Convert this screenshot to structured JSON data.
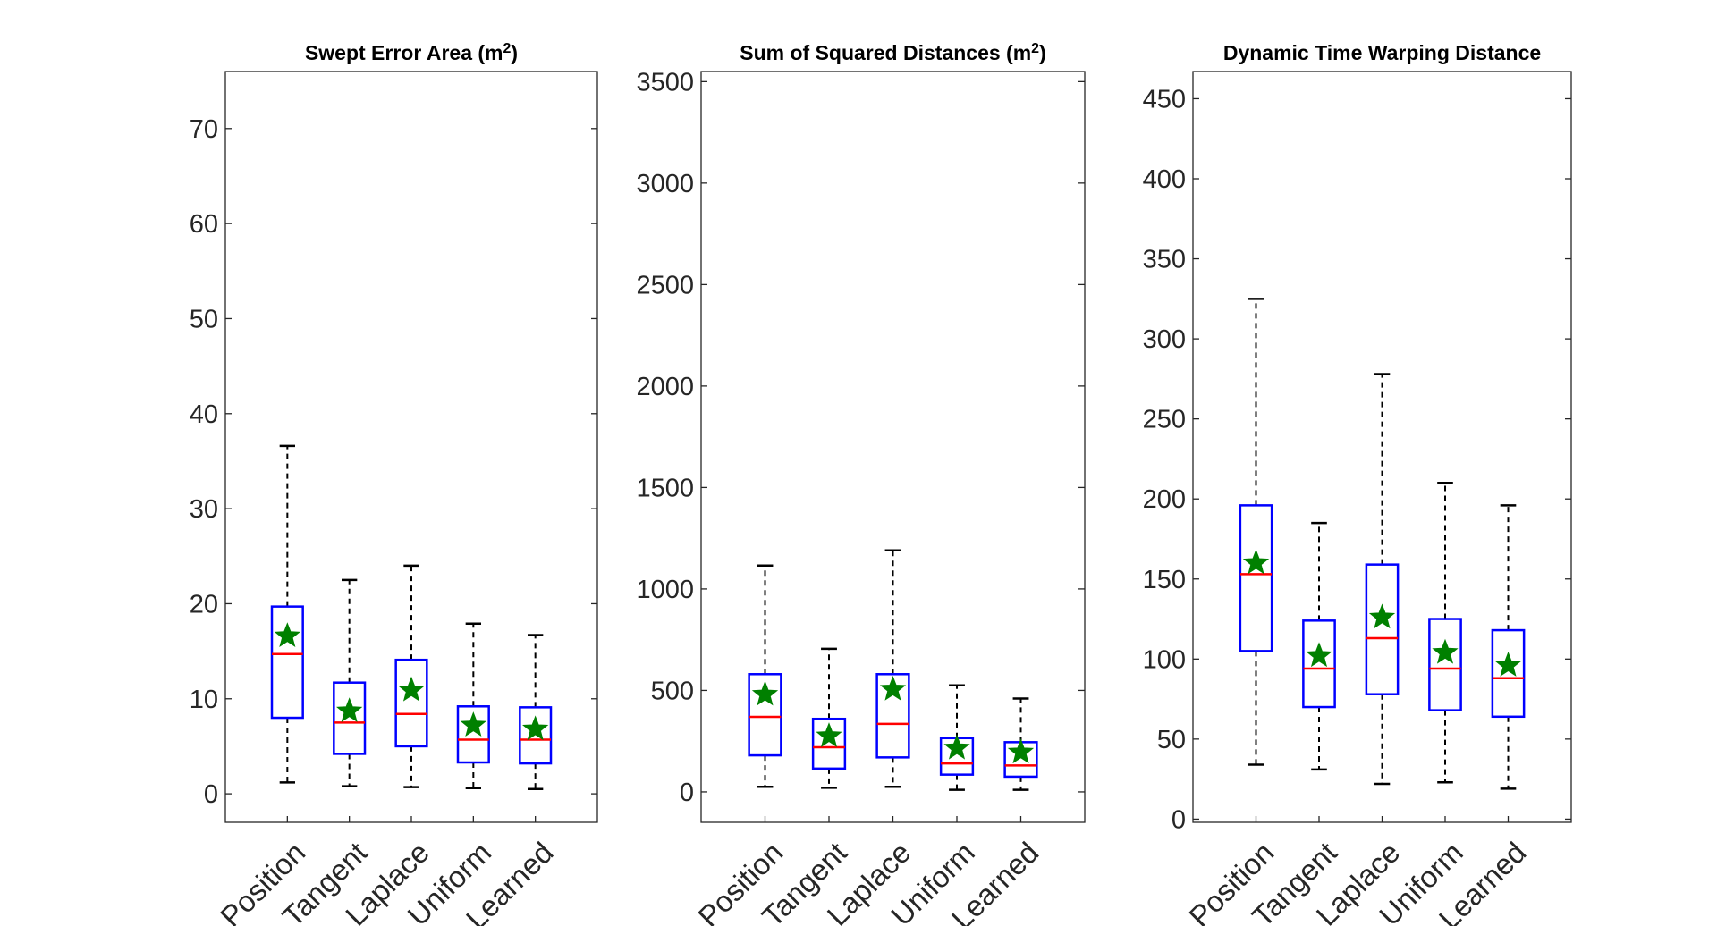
{
  "colors": {
    "box": "#0000ff",
    "median": "#ff0000",
    "mean_marker": "#008000",
    "whisker": "#000000",
    "axes": "#262626"
  },
  "chart_data": [
    {
      "type": "box",
      "title": "Swept Error Area (m",
      "title_sup": "2",
      "title_end": ")",
      "categories": [
        "Position",
        "Tangent",
        "Laplace",
        "Uniform",
        "Learned"
      ],
      "ylim": [
        -3,
        76
      ],
      "yticks": [
        0,
        10,
        20,
        30,
        40,
        50,
        60,
        70
      ],
      "boxes": [
        {
          "min": 1.2,
          "q1": 8.0,
          "median": 14.7,
          "q3": 19.7,
          "max": 36.6,
          "mean": 16.6
        },
        {
          "min": 0.8,
          "q1": 4.2,
          "median": 7.5,
          "q3": 11.7,
          "max": 22.5,
          "mean": 8.7
        },
        {
          "min": 0.7,
          "q1": 5.0,
          "median": 8.4,
          "q3": 14.1,
          "max": 24.0,
          "mean": 10.9
        },
        {
          "min": 0.6,
          "q1": 3.3,
          "median": 5.7,
          "q3": 9.2,
          "max": 17.9,
          "mean": 7.2
        },
        {
          "min": 0.5,
          "q1": 3.2,
          "median": 5.7,
          "q3": 9.1,
          "max": 16.7,
          "mean": 6.8
        }
      ]
    },
    {
      "type": "box",
      "title": "Sum of Squared Distances (m",
      "title_sup": "2",
      "title_end": ")",
      "categories": [
        "Position",
        "Tangent",
        "Laplace",
        "Uniform",
        "Learned"
      ],
      "ylim": [
        -150,
        3550
      ],
      "yticks": [
        0,
        500,
        1000,
        1500,
        2000,
        2500,
        3000,
        3500
      ],
      "boxes": [
        {
          "min": 25,
          "q1": 180,
          "median": 370,
          "q3": 580,
          "max": 1115,
          "mean": 480
        },
        {
          "min": 20,
          "q1": 115,
          "median": 220,
          "q3": 360,
          "max": 705,
          "mean": 275
        },
        {
          "min": 25,
          "q1": 170,
          "median": 335,
          "q3": 580,
          "max": 1190,
          "mean": 505
        },
        {
          "min": 10,
          "q1": 85,
          "median": 140,
          "q3": 265,
          "max": 525,
          "mean": 215
        },
        {
          "min": 10,
          "q1": 75,
          "median": 130,
          "q3": 245,
          "max": 460,
          "mean": 195
        }
      ]
    },
    {
      "type": "box",
      "title": "Dynamic Time Warping Distance",
      "title_sup": "",
      "title_end": "",
      "categories": [
        "Position",
        "Tangent",
        "Laplace",
        "Uniform",
        "Learned"
      ],
      "ylim": [
        -2,
        467
      ],
      "yticks": [
        0,
        50,
        100,
        150,
        200,
        250,
        300,
        350,
        400,
        450
      ],
      "boxes": [
        {
          "min": 34,
          "q1": 105,
          "median": 153,
          "q3": 196,
          "max": 325,
          "mean": 160
        },
        {
          "min": 31,
          "q1": 70,
          "median": 94,
          "q3": 124,
          "max": 185,
          "mean": 102
        },
        {
          "min": 22,
          "q1": 78,
          "median": 113,
          "q3": 159,
          "max": 278,
          "mean": 126
        },
        {
          "min": 23,
          "q1": 68,
          "median": 94,
          "q3": 125,
          "max": 210,
          "mean": 104
        },
        {
          "min": 19,
          "q1": 64,
          "median": 88,
          "q3": 118,
          "max": 196,
          "mean": 96
        }
      ]
    }
  ]
}
